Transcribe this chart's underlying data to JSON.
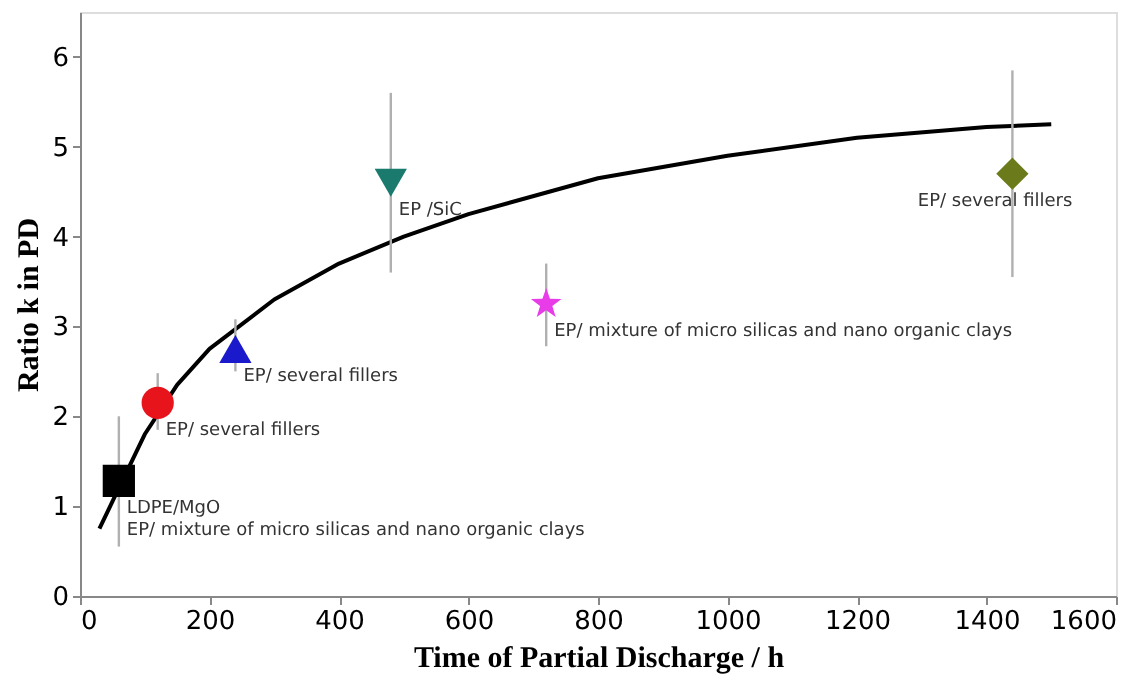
{
  "chart_data": {
    "type": "scatter",
    "xlabel": "Time of Partial Discharge / h",
    "ylabel": "Ratio k in PD",
    "xlim": [
      0,
      1600
    ],
    "xticks": [
      0,
      200,
      400,
      600,
      800,
      1000,
      1200,
      1400,
      1600
    ],
    "ylim": [
      0,
      6.5
    ],
    "yticks": [
      0,
      1,
      2,
      3,
      4,
      5,
      6
    ],
    "grid": false,
    "series": [
      {
        "type": "line",
        "color": "#000000",
        "marker": "none",
        "line_style": "solid",
        "x": [
          30,
          60,
          100,
          150,
          200,
          300,
          400,
          500,
          600,
          800,
          1000,
          1200,
          1400,
          1500
        ],
        "values": [
          0.75,
          1.2,
          1.8,
          2.35,
          2.75,
          3.3,
          3.7,
          4.0,
          4.25,
          4.65,
          4.9,
          5.1,
          5.22,
          5.25
        ]
      },
      {
        "color": "#000000",
        "marker": "square",
        "x": [
          60
        ],
        "values": [
          1.28
        ],
        "errors": [
          [
            0.55,
            2.0
          ]
        ]
      },
      {
        "color": "#e8141b",
        "marker": "circle",
        "x": [
          120
        ],
        "values": [
          2.15
        ],
        "errors": [
          [
            1.85,
            2.48
          ]
        ]
      },
      {
        "color": "#1a1acc",
        "marker": "triangle",
        "x": [
          240
        ],
        "values": [
          2.75
        ],
        "errors": [
          [
            2.5,
            3.08
          ]
        ]
      },
      {
        "color": "#1a7a6e",
        "marker": "triangle-down",
        "x": [
          480
        ],
        "values": [
          4.6
        ],
        "errors": [
          [
            3.6,
            5.6
          ]
        ]
      },
      {
        "color": "#e83ce8",
        "marker": "star",
        "x": [
          720
        ],
        "values": [
          3.25
        ],
        "errors": [
          [
            2.78,
            3.7
          ]
        ]
      },
      {
        "color": "#6b7a1a",
        "marker": "diamond",
        "x": [
          1440
        ],
        "values": [
          4.7
        ],
        "errors": [
          [
            3.55,
            5.85
          ]
        ]
      }
    ],
    "annotations": [
      {
        "text": "LDPE/MgO",
        "x": 60,
        "y": 1.28
      },
      {
        "text": "EP/ mixture of micro silicas  and nano organic clays",
        "x": 60,
        "y": 1.28
      },
      {
        "text": "EP/ several fillers",
        "x": 120,
        "y": 2.15
      },
      {
        "text": "EP/ several fillers",
        "x": 240,
        "y": 2.75
      },
      {
        "text": "EP /SiC",
        "x": 480,
        "y": 4.6
      },
      {
        "text": "EP/ mixture of micro silicas  and nano organic clays",
        "x": 720,
        "y": 3.25
      },
      {
        "text": "EP/ several fillers",
        "x": 1440,
        "y": 4.7
      }
    ]
  }
}
